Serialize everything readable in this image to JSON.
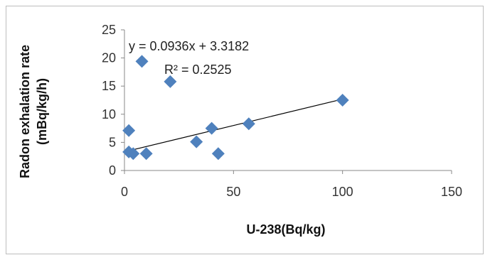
{
  "chart_data": {
    "type": "scatter",
    "title": "",
    "xlabel": "U-238(Bq/kg)",
    "ylabel_line1": "Radon exhalation rate",
    "ylabel_line2": "(mBq/kg/h)",
    "xlim": [
      0,
      150
    ],
    "ylim": [
      0,
      25
    ],
    "xticks": [
      0,
      50,
      100,
      150
    ],
    "yticks": [
      0,
      5,
      10,
      15,
      20,
      25
    ],
    "grid": false,
    "legend": "none",
    "marker": "diamond",
    "marker_color": "#4F81BD",
    "trendline_color": "#000000",
    "points": [
      {
        "x": 8,
        "y": 19.4
      },
      {
        "x": 21,
        "y": 15.8
      },
      {
        "x": 100,
        "y": 12.5
      },
      {
        "x": 57,
        "y": 8.3
      },
      {
        "x": 40,
        "y": 7.5
      },
      {
        "x": 2,
        "y": 7.1
      },
      {
        "x": 33,
        "y": 5.1
      },
      {
        "x": 2,
        "y": 3.3
      },
      {
        "x": 4,
        "y": 3.0
      },
      {
        "x": 10,
        "y": 3.0
      },
      {
        "x": 43,
        "y": 3.0
      }
    ],
    "trendline": {
      "slope": 0.0936,
      "intercept": 3.3182,
      "x_range": [
        0,
        100
      ],
      "equation_label": "y = 0.0936x + 3.3182",
      "r2_label": "R² = 0.2525"
    }
  }
}
